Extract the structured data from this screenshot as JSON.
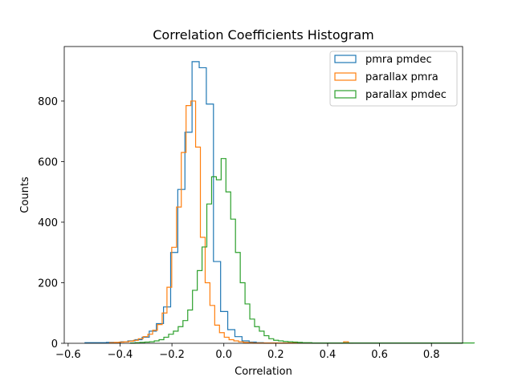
{
  "chart_data": {
    "type": "histogram",
    "title": "Correlation Coefficients Histogram",
    "xlabel": "Correlation",
    "ylabel": "Counts",
    "xlim": [
      -0.615,
      0.92
    ],
    "ylim": [
      0,
      980
    ],
    "xticks": [
      -0.6,
      -0.4,
      -0.2,
      0.0,
      0.2,
      0.4,
      0.6,
      0.8
    ],
    "xtick_labels": [
      "−0.6",
      "−0.4",
      "−0.2",
      "0.0",
      "0.2",
      "0.4",
      "0.6",
      "0.8"
    ],
    "yticks": [
      0,
      200,
      400,
      600,
      800
    ],
    "ytick_labels": [
      "0",
      "200",
      "400",
      "600",
      "800"
    ],
    "grid": false,
    "legend_position": "top-right",
    "series": [
      {
        "name": "pmra pmdec",
        "color": "#1f77b4",
        "bin_width": 0.0275,
        "bin_start": -0.535,
        "counts": [
          2,
          2,
          2,
          3,
          2,
          5,
          8,
          12,
          20,
          40,
          65,
          120,
          300,
          508,
          697,
          930,
          910,
          790,
          270,
          105,
          45,
          22,
          8,
          4,
          2,
          1
        ]
      },
      {
        "name": "parallax pmra",
        "color": "#ff7f0e",
        "bin_width": 0.0184,
        "bin_start": -0.44,
        "counts": [
          2,
          3,
          4,
          5,
          7,
          10,
          15,
          22,
          30,
          43,
          62,
          100,
          185,
          317,
          450,
          630,
          785,
          800,
          648,
          350,
          200,
          125,
          60,
          35,
          20,
          12,
          8,
          5,
          3,
          2,
          1,
          1,
          1,
          1,
          1,
          1,
          1,
          1,
          1,
          1,
          1,
          1,
          1,
          1,
          1,
          1,
          1,
          1,
          1,
          5,
          1
        ]
      },
      {
        "name": "parallax pmdec",
        "color": "#2ca02c",
        "bin_width": 0.0184,
        "bin_start": -0.36,
        "counts": [
          1,
          2,
          3,
          4,
          5,
          8,
          12,
          20,
          30,
          40,
          55,
          75,
          110,
          175,
          240,
          318,
          460,
          550,
          540,
          610,
          500,
          410,
          300,
          200,
          130,
          80,
          55,
          40,
          25,
          15,
          10,
          8,
          6,
          5,
          4,
          3,
          2,
          2,
          1,
          1,
          1,
          1,
          1,
          1,
          1,
          1,
          1,
          1,
          1,
          1,
          1,
          1,
          1,
          1,
          1,
          1,
          1,
          1,
          1,
          1,
          1,
          1,
          1,
          1,
          1,
          1,
          1,
          1,
          1,
          1,
          1,
          1
        ]
      }
    ]
  }
}
